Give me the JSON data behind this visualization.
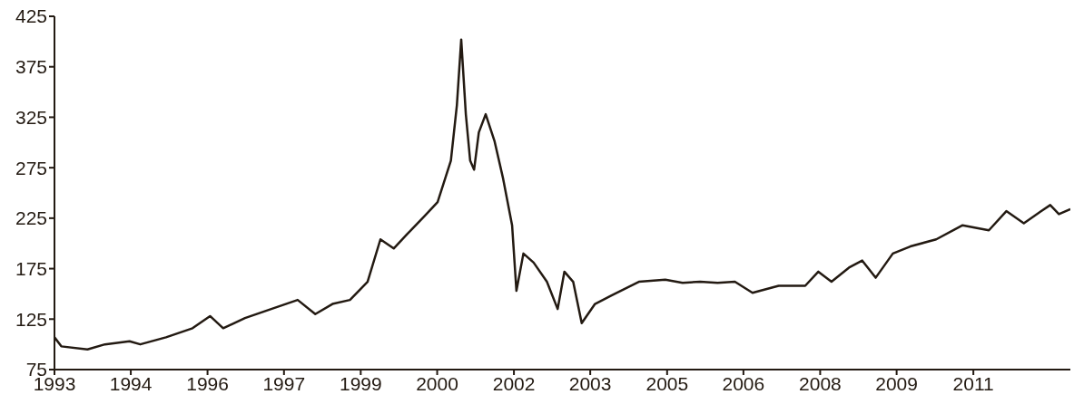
{
  "chart_data": {
    "type": "line",
    "x": [
      "1993-01-01",
      "1993-02-19",
      "1993-08-25",
      "1993-12-28",
      "1994-06-22",
      "1994-09-07",
      "1995-03-10",
      "1995-09-16",
      "1996-01-19",
      "1996-04-22",
      "1996-09-25",
      "1997-04-01",
      "1997-10-07",
      "1998-02-10",
      "1998-06-13",
      "1998-10-16",
      "1999-02-19",
      "1999-05-22",
      "1999-08-25",
      "1999-11-28",
      "2000-04-01",
      "2000-07-04",
      "2000-10-07",
      "2000-11-19",
      "2000-12-20",
      "2001-01-22",
      "2001-02-22",
      "2001-03-22",
      "2001-04-25",
      "2001-06-13",
      "2001-08-16",
      "2001-10-16",
      "2001-12-19",
      "2002-01-19",
      "2002-03-10",
      "2002-05-22",
      "2002-08-25",
      "2002-11-10",
      "2002-12-28",
      "2003-03-01",
      "2003-05-01",
      "2003-08-04",
      "2003-12-07",
      "2004-06-13",
      "2004-12-19",
      "2005-04-22",
      "2005-08-25",
      "2005-12-28",
      "2006-05-01",
      "2006-09-04",
      "2007-03-10",
      "2007-09-16",
      "2007-12-19",
      "2008-03-22",
      "2008-07-25",
      "2008-10-28",
      "2009-02-01",
      "2009-06-04",
      "2009-10-07",
      "2010-04-10",
      "2010-10-16",
      "2011-04-22",
      "2011-08-25",
      "2011-12-28",
      "2012-05-01",
      "2012-07-04",
      "2012-09-04",
      "2012-11-25"
    ],
    "series": [
      {
        "color": "#231a12",
        "values": [
          107,
          98,
          95,
          100,
          103,
          100,
          107,
          116,
          128,
          116,
          126,
          135,
          144,
          130,
          140,
          144,
          162,
          204,
          195,
          209,
          227,
          241,
          282,
          337,
          402,
          328,
          282,
          273,
          310,
          328,
          301,
          264,
          218,
          153,
          190,
          181,
          162,
          135,
          172,
          162,
          121,
          140,
          149,
          162,
          164,
          161,
          162,
          161,
          162,
          151,
          158,
          158,
          172,
          162,
          176,
          183,
          166,
          190,
          197,
          204,
          218,
          213,
          232,
          220,
          232,
          238,
          229,
          234
        ]
      }
    ],
    "xlim": [
      "1993-01-01",
      "2012-11-25"
    ],
    "xticks": [
      {
        "value": "1993-01-01",
        "label": "1993"
      },
      {
        "value": "1994-07-01",
        "label": "1994"
      },
      {
        "value": "1996-01-01",
        "label": "1996"
      },
      {
        "value": "1997-07-01",
        "label": "1997"
      },
      {
        "value": "1999-01-01",
        "label": "1999"
      },
      {
        "value": "2000-07-01",
        "label": "2000"
      },
      {
        "value": "2002-01-01",
        "label": "2002"
      },
      {
        "value": "2003-07-01",
        "label": "2003"
      },
      {
        "value": "2005-01-01",
        "label": "2005"
      },
      {
        "value": "2006-07-01",
        "label": "2006"
      },
      {
        "value": "2008-01-01",
        "label": "2008"
      },
      {
        "value": "2009-07-01",
        "label": "2009"
      },
      {
        "value": "2011-01-01",
        "label": "2011"
      }
    ],
    "ylim": [
      75,
      425
    ],
    "yticks": [
      75,
      125,
      175,
      225,
      275,
      325,
      375,
      425
    ],
    "grid": false,
    "legend": false
  }
}
